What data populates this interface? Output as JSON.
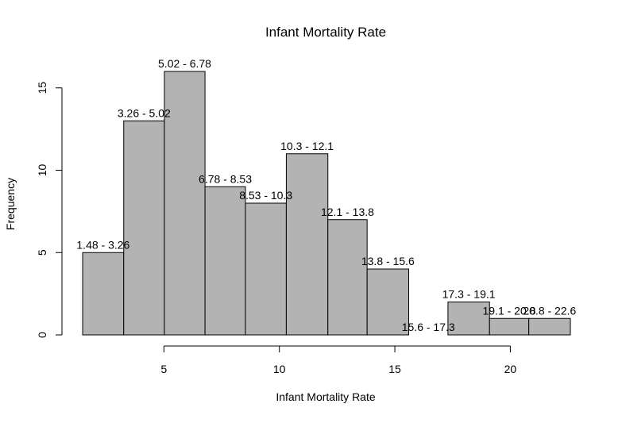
{
  "chart_data": {
    "type": "bar",
    "title": "Infant Mortality Rate",
    "xlabel": "Infant Mortality Rate",
    "ylabel": "Frequency",
    "xlim": [
      1.48,
      22.6
    ],
    "ylim": [
      0,
      16
    ],
    "x_ticks": [
      5,
      10,
      15,
      20
    ],
    "y_ticks": [
      0,
      5,
      10,
      15
    ],
    "grid": false,
    "bar_color": "#b3b3b3",
    "bins": [
      {
        "label": "1.48 - 3.26",
        "start": 1.48,
        "end": 3.26,
        "count": 5
      },
      {
        "label": "3.26 - 5.02",
        "start": 3.26,
        "end": 5.02,
        "count": 13
      },
      {
        "label": "5.02 - 6.78",
        "start": 5.02,
        "end": 6.78,
        "count": 16
      },
      {
        "label": "6.78 - 8.53",
        "start": 6.78,
        "end": 8.53,
        "count": 9
      },
      {
        "label": "8.53 - 10.3",
        "start": 8.53,
        "end": 10.3,
        "count": 8
      },
      {
        "label": "10.3 - 12.1",
        "start": 10.3,
        "end": 12.1,
        "count": 11
      },
      {
        "label": "12.1 - 13.8",
        "start": 12.1,
        "end": 13.8,
        "count": 7
      },
      {
        "label": "13.8 - 15.6",
        "start": 13.8,
        "end": 15.6,
        "count": 4
      },
      {
        "label": "15.6 - 17.3",
        "start": 15.6,
        "end": 17.3,
        "count": 0
      },
      {
        "label": "17.3 - 19.1",
        "start": 17.3,
        "end": 19.1,
        "count": 2
      },
      {
        "label": "19.1 - 20.8",
        "start": 19.1,
        "end": 20.8,
        "count": 1
      },
      {
        "label": "20.8 - 22.6",
        "start": 20.8,
        "end": 22.6,
        "count": 1
      }
    ]
  }
}
